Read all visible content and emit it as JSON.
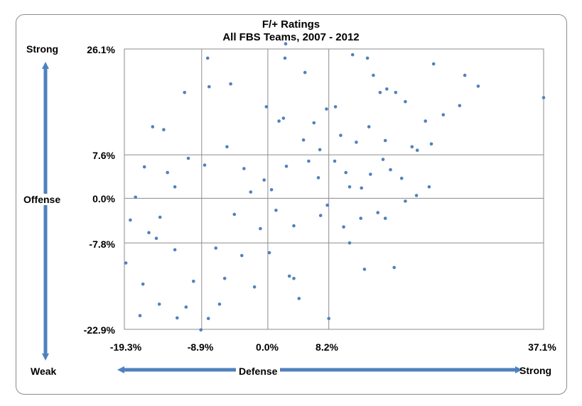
{
  "chart_data": {
    "type": "scatter",
    "title": "F/+ Ratings",
    "subtitle": "All FBS Teams, 2007 - 2012",
    "xlabel": "Defense",
    "ylabel": "Offense",
    "xlim": [
      -19.3,
      37.1
    ],
    "ylim": [
      -22.9,
      26.1
    ],
    "x_ticks": [
      {
        "value": -19.3,
        "label": "-19.3%"
      },
      {
        "value": -8.9,
        "label": "-8.9%"
      },
      {
        "value": 0.0,
        "label": "0.0%"
      },
      {
        "value": 8.2,
        "label": "8.2%"
      },
      {
        "value": 37.1,
        "label": "37.1%"
      }
    ],
    "y_ticks": [
      {
        "value": 26.1,
        "label": "26.1%"
      },
      {
        "value": 7.6,
        "label": "7.6%"
      },
      {
        "value": 0.0,
        "label": "0.0%"
      },
      {
        "value": -7.8,
        "label": "-7.8%"
      },
      {
        "value": -22.9,
        "label": "-22.9%"
      }
    ],
    "x_gridlines": [
      -8.9,
      0.0,
      8.2
    ],
    "y_gridlines": [
      7.6,
      0.0,
      -7.8
    ],
    "axis_ends": {
      "y_top": "Strong",
      "y_bottom": "Weak",
      "x_right": "Strong"
    },
    "points": [
      [
        37.1,
        17.6
      ],
      [
        26.5,
        21.5
      ],
      [
        28.3,
        19.6
      ],
      [
        22.3,
        23.5
      ],
      [
        25.8,
        16.2
      ],
      [
        23.6,
        14.6
      ],
      [
        22.0,
        9.5
      ],
      [
        21.2,
        13.5
      ],
      [
        14.2,
        21.5
      ],
      [
        16.0,
        19.1
      ],
      [
        11.4,
        25.1
      ],
      [
        13.4,
        24.5
      ],
      [
        19.4,
        9.0
      ],
      [
        18.5,
        16.9
      ],
      [
        17.2,
        18.5
      ],
      [
        13.6,
        12.5
      ],
      [
        9.1,
        16.0
      ],
      [
        7.9,
        15.6
      ],
      [
        2.1,
        14.0
      ],
      [
        -7.9,
        19.5
      ],
      [
        -5.0,
        20.0
      ],
      [
        -11.2,
        18.5
      ],
      [
        -15.5,
        12.5
      ],
      [
        -14.0,
        12.0
      ],
      [
        -0.2,
        16.0
      ],
      [
        1.5,
        13.5
      ],
      [
        2.3,
        24.5
      ],
      [
        -8.1,
        24.5
      ],
      [
        2.4,
        27.0
      ],
      [
        5.0,
        22.0
      ],
      [
        15.1,
        18.5
      ],
      [
        20.0,
        0.5
      ],
      [
        21.7,
        2.0
      ],
      [
        20.1,
        8.4
      ],
      [
        16.5,
        5.0
      ],
      [
        18.5,
        -0.5
      ],
      [
        14.8,
        -2.5
      ],
      [
        15.8,
        -3.5
      ],
      [
        11.0,
        -7.8
      ],
      [
        13.0,
        -12.4
      ],
      [
        17.0,
        -12.1
      ],
      [
        8.2,
        -21.0
      ],
      [
        -9.0,
        -23.0
      ],
      [
        -17.2,
        -20.5
      ],
      [
        -19.1,
        -11.3
      ],
      [
        -12.2,
        -20.9
      ],
      [
        -8.0,
        -21.0
      ],
      [
        3.5,
        -14.0
      ],
      [
        2.9,
        -13.6
      ],
      [
        -13.5,
        4.5
      ],
      [
        -16.6,
        5.5
      ],
      [
        -18.5,
        -3.8
      ],
      [
        -17.8,
        0.2
      ],
      [
        7.1,
        -3.0
      ],
      [
        6.8,
        3.6
      ],
      [
        11.9,
        9.8
      ],
      [
        15.5,
        6.8
      ],
      [
        18.0,
        3.5
      ],
      [
        12.6,
        1.8
      ],
      [
        10.5,
        4.5
      ],
      [
        -1.8,
        -15.5
      ],
      [
        -5.8,
        -14.0
      ],
      [
        -6.5,
        -18.5
      ],
      [
        -10.0,
        -14.5
      ],
      [
        -12.5,
        -9.0
      ],
      [
        -15.0,
        -7.0
      ],
      [
        -16.8,
        -15.0
      ],
      [
        -14.6,
        -18.5
      ],
      [
        -11.0,
        -19.0
      ],
      [
        4.2,
        -17.5
      ],
      [
        0.2,
        -9.5
      ],
      [
        -3.5,
        -10.0
      ],
      [
        -1.0,
        -5.3
      ],
      [
        1.1,
        -2.1
      ],
      [
        3.5,
        -4.8
      ],
      [
        5.5,
        6.5
      ],
      [
        7.0,
        8.5
      ],
      [
        9.8,
        11.0
      ],
      [
        -0.5,
        3.2
      ],
      [
        -3.2,
        5.2
      ],
      [
        -5.5,
        9.0
      ],
      [
        -8.5,
        5.8
      ],
      [
        -10.7,
        7.0
      ],
      [
        -12.5,
        2.0
      ],
      [
        -14.5,
        -3.3
      ],
      [
        -16.0,
        -6.0
      ],
      [
        -7.0,
        -8.7
      ],
      [
        -4.5,
        -2.8
      ],
      [
        -2.3,
        1.1
      ],
      [
        0.5,
        1.5
      ],
      [
        2.5,
        5.6
      ],
      [
        4.8,
        10.2
      ],
      [
        6.2,
        13.2
      ],
      [
        9.0,
        6.5
      ],
      [
        11.0,
        2.0
      ],
      [
        12.5,
        -3.5
      ],
      [
        13.8,
        4.2
      ],
      [
        15.8,
        10.1
      ],
      [
        10.2,
        -5.0
      ],
      [
        8.0,
        -1.2
      ]
    ]
  }
}
